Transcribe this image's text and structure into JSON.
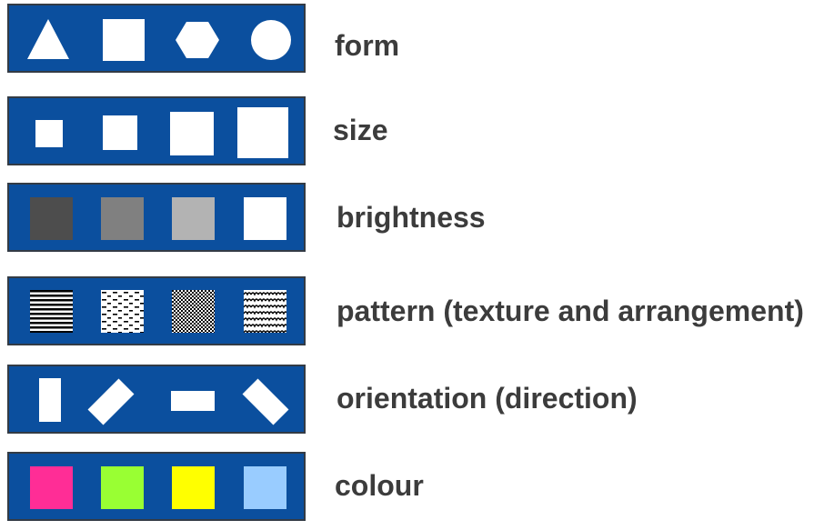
{
  "rows": [
    {
      "label": "form",
      "icons": [
        "triangle-icon",
        "square-icon",
        "hexagon-icon",
        "circle-icon"
      ]
    },
    {
      "label": "size",
      "icons": [
        "square-small-icon",
        "square-medium-icon",
        "square-large-icon",
        "square-xlarge-icon"
      ]
    },
    {
      "label": "brightness",
      "icons": [
        "square-darkgray-icon",
        "square-gray-icon",
        "square-lightgray-icon",
        "square-white-icon"
      ],
      "colors": [
        "#4d4d4d",
        "#808080",
        "#b3b3b3",
        "#ffffff"
      ]
    },
    {
      "label": "pattern (texture and arrangement)",
      "icons": [
        "horizontal-stripes-pattern-icon",
        "dashes-pattern-icon",
        "checker-pattern-icon",
        "wave-pattern-icon"
      ]
    },
    {
      "label": "orientation (direction)",
      "icons": [
        "rectangle-vertical-icon",
        "rectangle-diagonal-left-icon",
        "rectangle-horizontal-icon",
        "rectangle-diagonal-right-icon"
      ]
    },
    {
      "label": "colour",
      "icons": [
        "square-pink-icon",
        "square-lime-icon",
        "square-yellow-icon",
        "square-lightblue-icon"
      ],
      "colors": [
        "#ff2d96",
        "#99ff33",
        "#ffff00",
        "#99ccff"
      ]
    }
  ],
  "panel_color": "#0b4f9e",
  "panel_border_color": "#333b45",
  "text_color": "#3c3c3c"
}
